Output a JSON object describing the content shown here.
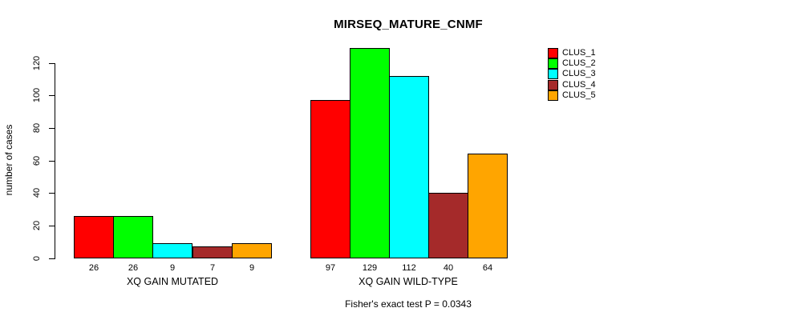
{
  "chart_data": {
    "type": "bar",
    "title": "MIRSEQ_MATURE_CNMF",
    "ylabel": "number of cases",
    "xlabel": "",
    "ylim": [
      0,
      120
    ],
    "yticks": [
      0,
      20,
      40,
      60,
      80,
      100,
      120
    ],
    "grid": false,
    "categories": [
      "XQ GAIN MUTATED",
      "XQ GAIN WILD-TYPE"
    ],
    "series": [
      {
        "name": "CLUS_1",
        "color": "#ff0000",
        "values": [
          26,
          97
        ]
      },
      {
        "name": "CLUS_2",
        "color": "#00ff00",
        "values": [
          26,
          129
        ]
      },
      {
        "name": "CLUS_3",
        "color": "#00ffff",
        "values": [
          9,
          112
        ]
      },
      {
        "name": "CLUS_4",
        "color": "#a52a2a",
        "values": [
          7,
          40
        ]
      },
      {
        "name": "CLUS_5",
        "color": "#ffa500",
        "values": [
          9,
          64
        ]
      }
    ],
    "bar_value_labels_shown": true,
    "legend_position": "top-right",
    "caption": "Fisher's exact test P = 0.0343"
  }
}
